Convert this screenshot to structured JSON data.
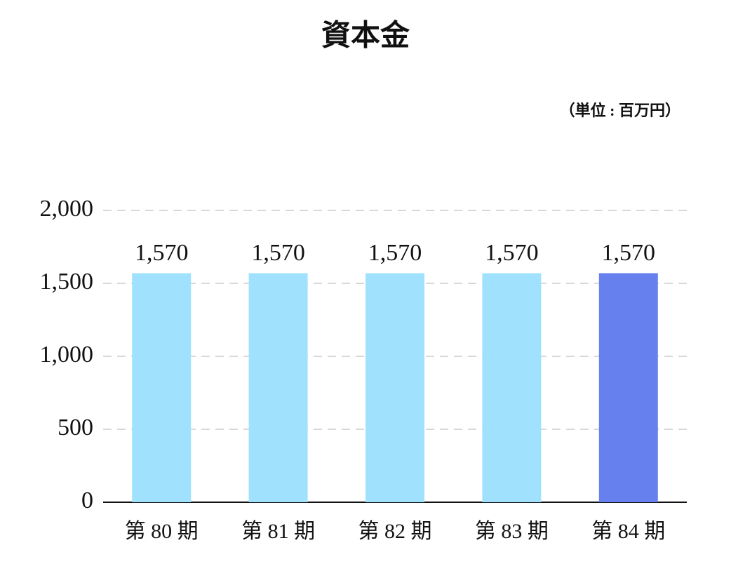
{
  "chart_data": {
    "type": "bar",
    "title": "資本金",
    "subtitle": "（単位 : 百万円）",
    "categories": [
      "第 80 期",
      "第 81 期",
      "第 82 期",
      "第 83 期",
      "第 84 期"
    ],
    "values": [
      1570,
      1570,
      1570,
      1570,
      1570
    ],
    "value_labels": [
      "1,570",
      "1,570",
      "1,570",
      "1,570",
      "1,570"
    ],
    "colors": [
      "#a0e2fd",
      "#a0e2fd",
      "#a0e2fd",
      "#a0e2fd",
      "#6680ee"
    ],
    "ylim": [
      0,
      2000
    ],
    "yticks": [
      0,
      500,
      {
        "value": 1000,
        "label": "1,000"
      },
      {
        "value": 1500,
        "label": "1,500"
      },
      {
        "value": 2000,
        "label": "2,000"
      }
    ],
    "grid": true
  }
}
